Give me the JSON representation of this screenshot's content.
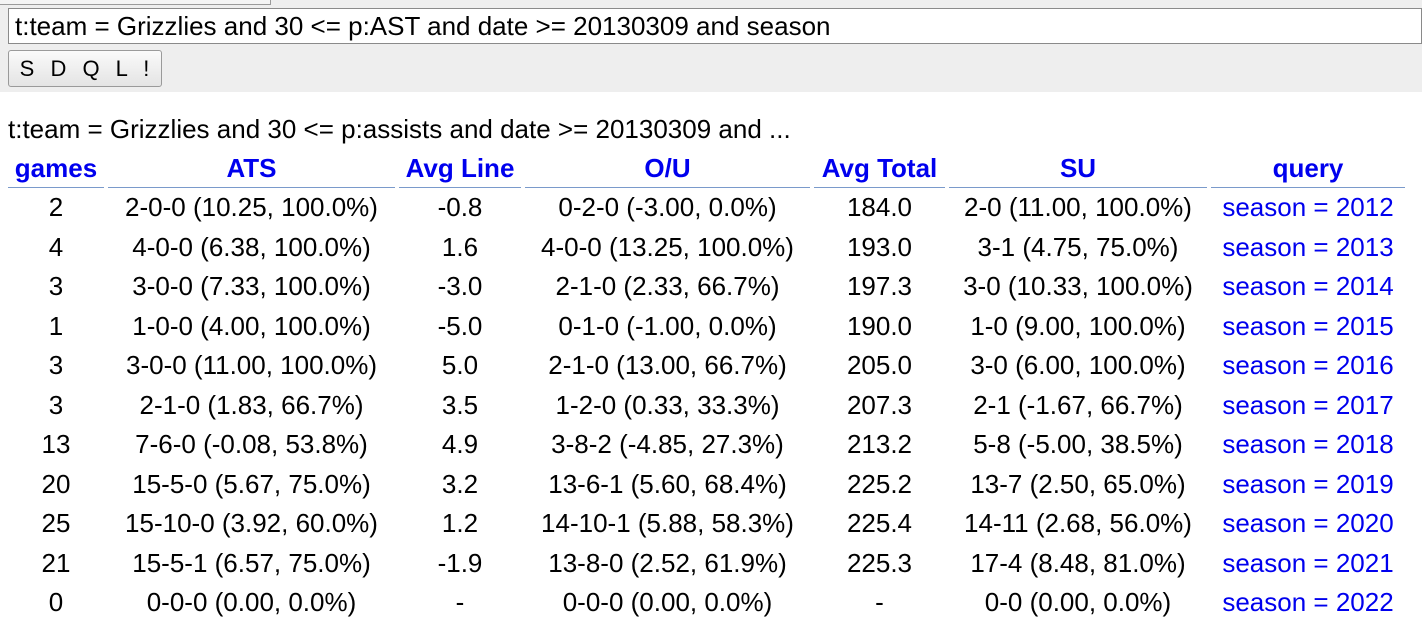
{
  "query_input": {
    "value": "t:team = Grizzlies and 30 <= p:AST and date >= 20130309 and season"
  },
  "submit_button": {
    "label": "S D Q L !"
  },
  "results": {
    "caption": "t:team = Grizzlies and 30 <= p:assists and date >= 20130309 and ...",
    "columns": [
      "games",
      "ATS",
      "Avg Line",
      "O/U",
      "Avg Total",
      "SU",
      "query"
    ],
    "rows": [
      {
        "games": "2",
        "ats": "2-0-0 (10.25, 100.0%)",
        "avg_line": "-0.8",
        "ou": "0-2-0 (-3.00, 0.0%)",
        "avg_total": "184.0",
        "su": "2-0 (11.00, 100.0%)",
        "query": "season = 2012"
      },
      {
        "games": "4",
        "ats": "4-0-0 (6.38, 100.0%)",
        "avg_line": "1.6",
        "ou": "4-0-0 (13.25, 100.0%)",
        "avg_total": "193.0",
        "su": "3-1 (4.75, 75.0%)",
        "query": "season = 2013"
      },
      {
        "games": "3",
        "ats": "3-0-0 (7.33, 100.0%)",
        "avg_line": "-3.0",
        "ou": "2-1-0 (2.33, 66.7%)",
        "avg_total": "197.3",
        "su": "3-0 (10.33, 100.0%)",
        "query": "season = 2014"
      },
      {
        "games": "1",
        "ats": "1-0-0 (4.00, 100.0%)",
        "avg_line": "-5.0",
        "ou": "0-1-0 (-1.00, 0.0%)",
        "avg_total": "190.0",
        "su": "1-0 (9.00, 100.0%)",
        "query": "season = 2015"
      },
      {
        "games": "3",
        "ats": "3-0-0 (11.00, 100.0%)",
        "avg_line": "5.0",
        "ou": "2-1-0 (13.00, 66.7%)",
        "avg_total": "205.0",
        "su": "3-0 (6.00, 100.0%)",
        "query": "season = 2016"
      },
      {
        "games": "3",
        "ats": "2-1-0 (1.83, 66.7%)",
        "avg_line": "3.5",
        "ou": "1-2-0 (0.33, 33.3%)",
        "avg_total": "207.3",
        "su": "2-1 (-1.67, 66.7%)",
        "query": "season = 2017"
      },
      {
        "games": "13",
        "ats": "7-6-0 (-0.08, 53.8%)",
        "avg_line": "4.9",
        "ou": "3-8-2 (-4.85, 27.3%)",
        "avg_total": "213.2",
        "su": "5-8 (-5.00, 38.5%)",
        "query": "season = 2018"
      },
      {
        "games": "20",
        "ats": "15-5-0 (5.67, 75.0%)",
        "avg_line": "3.2",
        "ou": "13-6-1 (5.60, 68.4%)",
        "avg_total": "225.2",
        "su": "13-7 (2.50, 65.0%)",
        "query": "season = 2019"
      },
      {
        "games": "25",
        "ats": "15-10-0 (3.92, 60.0%)",
        "avg_line": "1.2",
        "ou": "14-10-1 (5.88, 58.3%)",
        "avg_total": "225.4",
        "su": "14-11 (2.68, 56.0%)",
        "query": "season = 2020"
      },
      {
        "games": "21",
        "ats": "15-5-1 (6.57, 75.0%)",
        "avg_line": "-1.9",
        "ou": "13-8-0 (2.52, 61.9%)",
        "avg_total": "225.3",
        "su": "17-4 (8.48, 81.0%)",
        "query": "season = 2021"
      },
      {
        "games": "0",
        "ats": "0-0-0 (0.00, 0.0%)",
        "avg_line": "-",
        "ou": "0-0-0 (0.00, 0.0%)",
        "avg_total": "-",
        "su": "0-0 (0.00, 0.0%)",
        "query": "season = 2022"
      }
    ]
  },
  "colors": {
    "link": "#0000ee",
    "toolbar_background": "#eeeeee"
  }
}
